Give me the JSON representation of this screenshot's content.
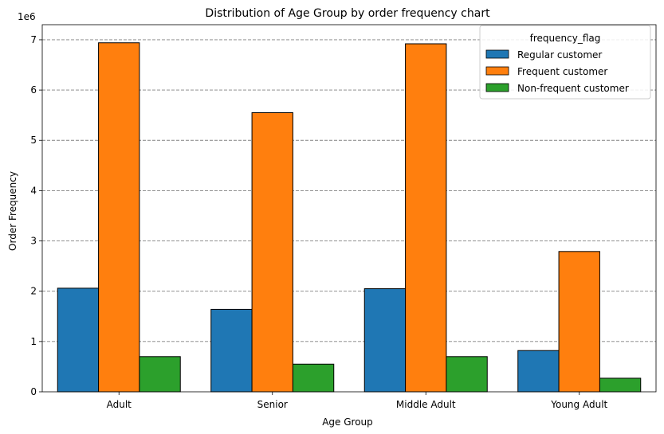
{
  "chart_data": {
    "type": "bar",
    "title": "Distribution of Age Group by order frequency chart",
    "xlabel": "Age Group",
    "ylabel": "Order Frequency",
    "y_multiplier_label": "1e6",
    "categories": [
      "Adult",
      "Senior",
      "Middle Adult",
      "Young Adult"
    ],
    "series": [
      {
        "name": "Regular customer",
        "color": "#1f77b4",
        "values": [
          2.06,
          1.64,
          2.05,
          0.82
        ]
      },
      {
        "name": "Frequent customer",
        "color": "#ff7f0e",
        "values": [
          6.94,
          5.55,
          6.92,
          2.79
        ]
      },
      {
        "name": "Non-frequent customer",
        "color": "#2ca02c",
        "values": [
          0.7,
          0.55,
          0.7,
          0.27
        ]
      }
    ],
    "y_ticks": [
      0,
      1,
      2,
      3,
      4,
      5,
      6,
      7
    ],
    "ylim": [
      0,
      7.3
    ],
    "grid": "y-dashed",
    "legend_title": "frequency_flag",
    "legend_placement": "top-right"
  }
}
